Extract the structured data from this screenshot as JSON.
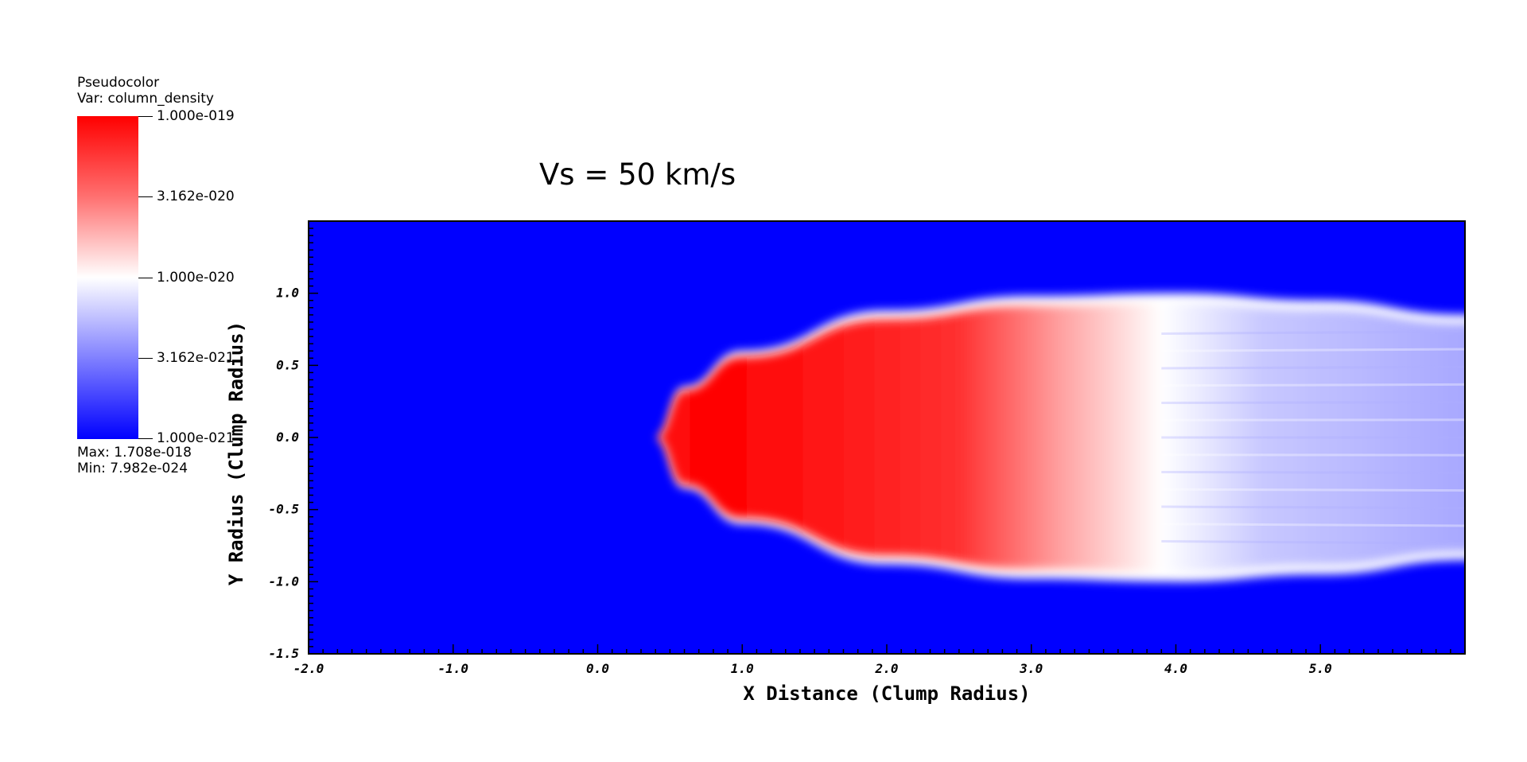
{
  "legend": {
    "plot_type": "Pseudocolor",
    "var_label": "Var: column_density",
    "ticks": [
      "1.000e-019",
      "3.162e-020",
      "1.000e-020",
      "3.162e-021",
      "1.000e-021"
    ],
    "max_label": "Max:  1.708e-018",
    "min_label": "Min:  7.982e-024",
    "colors": {
      "high": "#ff0000",
      "mid": "#ffffff",
      "low": "#0000ff"
    }
  },
  "chart_data": {
    "type": "heatmap",
    "title": "Vs = 50 km/s",
    "xlabel": "X Distance (Clump Radius)",
    "ylabel": "Y Radius (Clump Radius)",
    "xlim": [
      -2.0,
      6.0
    ],
    "ylim": [
      -1.5,
      1.5
    ],
    "x_ticks": [
      -2.0,
      -1.0,
      0.0,
      1.0,
      2.0,
      3.0,
      4.0,
      5.0
    ],
    "x_tick_labels": [
      "-2.0",
      "-1.0",
      "0.0",
      "1.0",
      "2.0",
      "3.0",
      "4.0",
      "5.0"
    ],
    "y_ticks": [
      -1.5,
      -1.0,
      -0.5,
      0.0,
      0.5,
      1.0
    ],
    "y_tick_labels": [
      "-1.5",
      "-1.0",
      "-0.5",
      "0.0",
      "0.5",
      "1.0"
    ],
    "colormap": [
      "#0000ff",
      "#ffffff",
      "#ff0000"
    ],
    "background_color": "#0000ff",
    "structure": {
      "apex_x": 0.4,
      "width_at_x": [
        [
          0.4,
          0.0
        ],
        [
          0.6,
          0.35
        ],
        [
          1.0,
          0.6
        ],
        [
          2.0,
          0.88
        ],
        [
          3.0,
          0.98
        ],
        [
          4.0,
          1.0
        ],
        [
          5.0,
          0.95
        ],
        [
          6.0,
          0.85
        ]
      ],
      "high_density_range_x": [
        0.5,
        2.5
      ],
      "transition_x": 3.9
    }
  }
}
